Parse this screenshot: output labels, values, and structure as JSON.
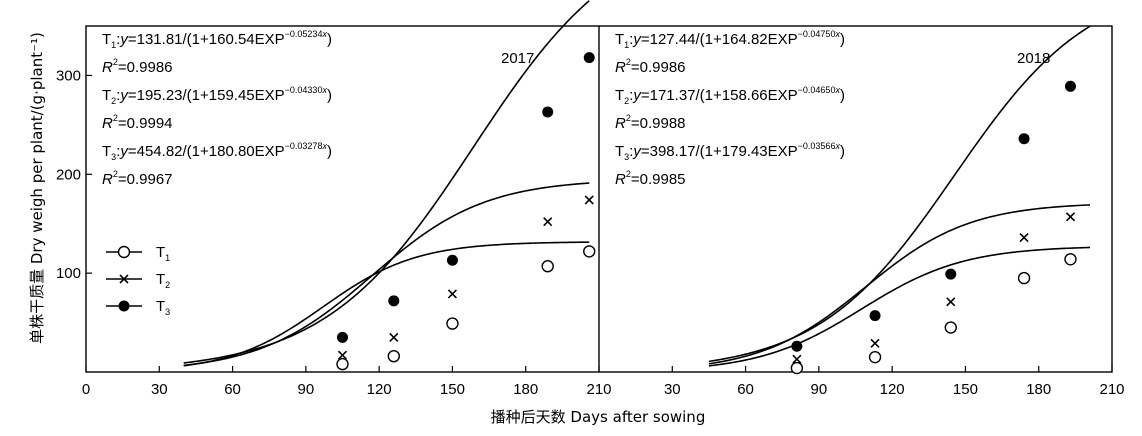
{
  "chart_data": {
    "type": "scatter",
    "xlabel": "播种后天数 Days after sowing",
    "ylabel": "单株干质量 Dry weigh per plant/(g·plant⁻¹)",
    "y_ticks": [
      100,
      200,
      300
    ],
    "ylim": [
      0,
      350
    ],
    "legend": {
      "placement": "left",
      "entries": [
        {
          "label": "T",
          "sub": "1",
          "marker": "open-circle"
        },
        {
          "label": "T",
          "sub": "2",
          "marker": "cross"
        },
        {
          "label": "T",
          "sub": "3",
          "marker": "filled-circle"
        }
      ]
    },
    "panels": [
      {
        "year": "2017",
        "xlim": [
          0,
          210
        ],
        "x_ticks": [
          0,
          30,
          60,
          90,
          120,
          150,
          180,
          210
        ],
        "curve_xmin": 40,
        "curve_xmax": 206,
        "equations": [
          {
            "prefix": "T",
            "sub": "1",
            "body": ":y=131.81/(1+160.54EXP",
            "exp": "−0.05234x",
            "end": ")"
          },
          {
            "r2": "=0.9986"
          },
          {
            "prefix": "T",
            "sub": "2",
            "body": ":y=195.23/(1+159.45EXP",
            "exp": "−0.04330x",
            "end": ")"
          },
          {
            "r2": "=0.9994"
          },
          {
            "prefix": "T",
            "sub": "3",
            "body": ":y=454.82/(1+180.80EXP",
            "exp": "−0.03278x",
            "end": ")"
          },
          {
            "r2": "=0.9967"
          }
        ],
        "series": [
          {
            "name": "T1",
            "marker": "open-circle",
            "model": {
              "a": 131.81,
              "b": 160.54,
              "c": 0.05234
            },
            "x": [
              105,
              126,
              150,
              189,
              206
            ],
            "y": [
              8,
              16,
              49,
              107,
              122
            ]
          },
          {
            "name": "T2",
            "marker": "cross",
            "model": {
              "a": 195.23,
              "b": 159.45,
              "c": 0.0433
            },
            "x": [
              105,
              126,
              150,
              189,
              206
            ],
            "y": [
              17,
              35,
              79,
              152,
              174
            ]
          },
          {
            "name": "T3",
            "marker": "filled-circle",
            "model": {
              "a": 454.82,
              "b": 180.8,
              "c": 0.03278
            },
            "x": [
              105,
              126,
              150,
              189,
              206
            ],
            "y": [
              35,
              72,
              113,
              263,
              318
            ]
          }
        ]
      },
      {
        "year": "2018",
        "xlim": [
          0,
          210
        ],
        "x_ticks": [
          30,
          60,
          90,
          120,
          150,
          180,
          210
        ],
        "curve_xmin": 45,
        "curve_xmax": 201,
        "equations": [
          {
            "prefix": "T",
            "sub": "1",
            "body": ":y=127.44/(1+164.82EXP",
            "exp": "−0.04750x",
            "end": ")"
          },
          {
            "r2": "=0.9986"
          },
          {
            "prefix": "T",
            "sub": "2",
            "body": ":y=171.37/(1+158.66EXP",
            "exp": "−0.04650x",
            "end": ")"
          },
          {
            "r2": "=0.9988"
          },
          {
            "prefix": "T",
            "sub": "3",
            "body": ":y=398.17/(1+179.43EXP",
            "exp": "−0.03566x",
            "end": ")"
          },
          {
            "r2": "=0.9985"
          }
        ],
        "series": [
          {
            "name": "T1",
            "marker": "open-circle",
            "model": {
              "a": 127.44,
              "b": 164.82,
              "c": 0.0475
            },
            "x": [
              81,
              113,
              144,
              174,
              193
            ],
            "y": [
              4,
              15,
              45,
              95,
              114
            ]
          },
          {
            "name": "T2",
            "marker": "cross",
            "model": {
              "a": 171.37,
              "b": 158.66,
              "c": 0.0465
            },
            "x": [
              81,
              113,
              144,
              174,
              193
            ],
            "y": [
              13,
              29,
              71,
              136,
              157
            ]
          },
          {
            "name": "T3",
            "marker": "filled-circle",
            "model": {
              "a": 398.17,
              "b": 179.43,
              "c": 0.03566
            },
            "x": [
              81,
              113,
              144,
              174,
              193
            ],
            "y": [
              26,
              57,
              99,
              236,
              289
            ]
          }
        ]
      }
    ]
  }
}
